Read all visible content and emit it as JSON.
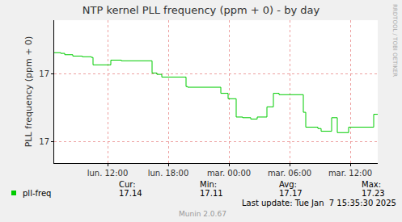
{
  "chart_data": {
    "type": "line",
    "title": "NTP kernel PLL frequency (ppm + 0) - by day",
    "y_label": "PLL frequency (ppm + 0)",
    "x": [
      6.72,
      7.36,
      7.76,
      8.56,
      9.5,
      10.4,
      10.56,
      12.32,
      13.36,
      16.4,
      16.88,
      17.36,
      19.76,
      19.92,
      23.2,
      23.92,
      24.72,
      25.36,
      26.16,
      26.8,
      27.76,
      28.4,
      28.96,
      31.36,
      31.6,
      32.8,
      33.12,
      34.16,
      34.72,
      35.84,
      38.32,
      38.72
    ],
    "series": [
      {
        "name": "pll-freq",
        "color": "#00cc00",
        "line_style": "steps",
        "values": [
          17.231,
          17.23,
          17.228,
          17.226,
          17.225,
          17.224,
          17.213,
          17.22,
          17.219,
          17.201,
          17.199,
          17.195,
          17.181,
          17.18,
          17.171,
          17.163,
          17.136,
          17.135,
          17.133,
          17.136,
          17.151,
          17.171,
          17.169,
          17.143,
          17.121,
          17.119,
          17.115,
          17.135,
          17.113,
          17.121,
          17.14,
          17.14
        ]
      }
    ],
    "xlim": [
      6.72,
      38.72
    ],
    "xticks": [
      {
        "value": 12,
        "label": "lun. 12:00"
      },
      {
        "value": 18,
        "label": "lun. 18:00"
      },
      {
        "value": 24,
        "label": "mar. 00:00"
      },
      {
        "value": 30,
        "label": "mar. 06:00"
      },
      {
        "value": 36,
        "label": "mar. 12:00"
      }
    ],
    "ylim": [
      17.068,
      17.279
    ],
    "yticks": [
      {
        "value": 17.1,
        "label": "17"
      },
      {
        "value": 17.2,
        "label": "17"
      }
    ],
    "grid": true,
    "summary": {
      "headers": [
        "Cur:",
        "Min:",
        "Avg:",
        "Max:"
      ],
      "values": [
        17.14,
        17.11,
        17.17,
        17.23
      ]
    },
    "footer": "Last update: Tue Jan  7 15:35:30 2025",
    "credit": "Munin 2.0.67",
    "watermark": "RRDTOOL / TOBI OETIKER"
  }
}
